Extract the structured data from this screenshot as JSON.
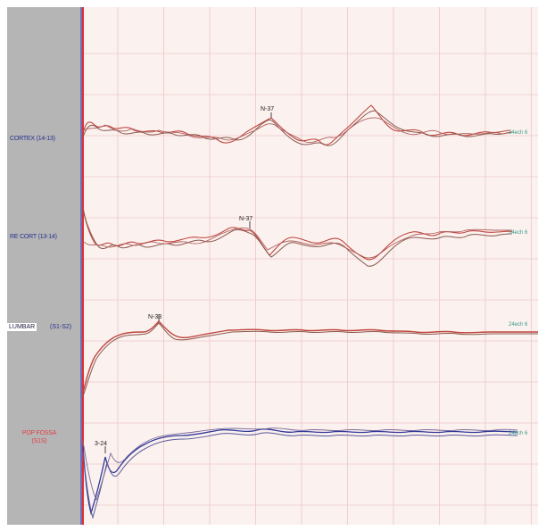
{
  "channels": [
    {
      "label": "CORTEX (14-13)",
      "peak_label": "N-37",
      "end_label": "24ech 6"
    },
    {
      "label": "RE CORT (13-14)",
      "peak_label": "N-37",
      "end_label": "24ech 6"
    },
    {
      "label": "LUMBAR",
      "label_suffix": "(S1-S2)",
      "peak_label": "N-33",
      "end_label": "24ech 6"
    },
    {
      "label": "POP FOSSA",
      "label_line2": "(S1S)",
      "peak_label": "3-24",
      "end_label": "24ech 6"
    }
  ],
  "colors": {
    "panel": "#b5b5b5",
    "plot_bg": "#fbf1ee",
    "grid": "#ecc8c8",
    "red_trace": "#c0463e",
    "dark_trace": "#6a4a44",
    "blue_trace": "#323a9c",
    "cursor_red": "#e03030",
    "cursor_blue": "#4040c0",
    "end_marker": "#3a9a8a"
  }
}
